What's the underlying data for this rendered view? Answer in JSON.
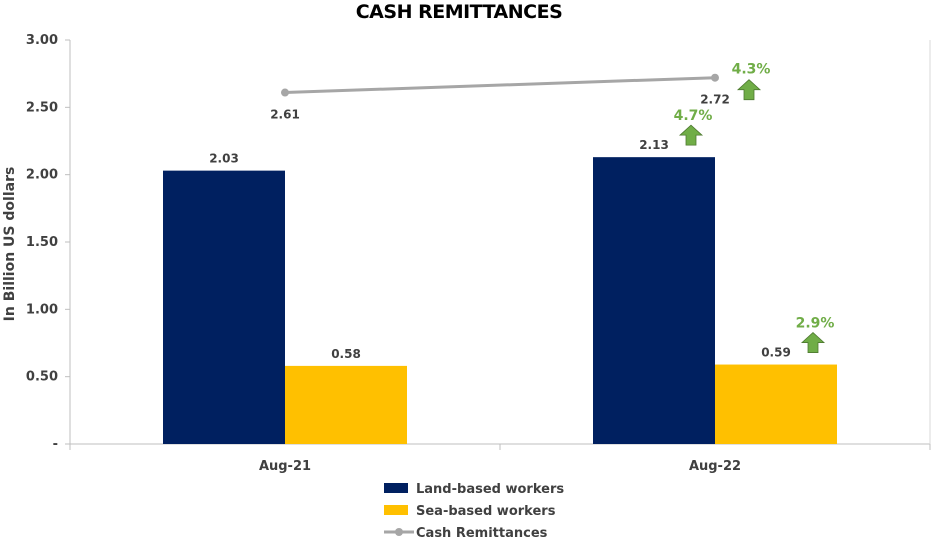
{
  "chart_data": {
    "type": "bar",
    "title": "CASH REMITTANCES",
    "ylabel": "In Billion US dollars",
    "xlabel": "",
    "ylim": [
      0,
      3
    ],
    "ytick_labels": [
      "-",
      "0.50",
      "1.00",
      "1.50",
      "2.00",
      "2.50",
      "3.00"
    ],
    "ytick_values": [
      0,
      0.5,
      1.0,
      1.5,
      2.0,
      2.5,
      3.0
    ],
    "categories": [
      "Aug-21",
      "Aug-22"
    ],
    "series": [
      {
        "name": "Land-based workers",
        "type": "bar",
        "color": "#002060",
        "values": [
          2.03,
          2.13
        ],
        "labels": [
          "2.03",
          "2.13"
        ]
      },
      {
        "name": "Sea-based workers",
        "type": "bar",
        "color": "#ffc000",
        "values": [
          0.58,
          0.59
        ],
        "labels": [
          "0.58",
          "0.59"
        ]
      },
      {
        "name": "Cash Remittances",
        "type": "line",
        "color": "#a6a6a6",
        "values": [
          2.61,
          2.72
        ],
        "labels": [
          "2.61",
          "2.72"
        ]
      }
    ],
    "growth_annotations": [
      {
        "series": "Land-based workers",
        "category": "Aug-22",
        "text": "4.7%",
        "icon": "up-arrow-icon",
        "color": "#70ad47"
      },
      {
        "series": "Sea-based workers",
        "category": "Aug-22",
        "text": "2.9%",
        "icon": "up-arrow-icon",
        "color": "#70ad47"
      },
      {
        "series": "Cash Remittances",
        "category": "Aug-22",
        "text": "4.3%",
        "icon": "up-arrow-icon",
        "color": "#70ad47"
      }
    ],
    "grid": false,
    "legend": "bottom"
  }
}
